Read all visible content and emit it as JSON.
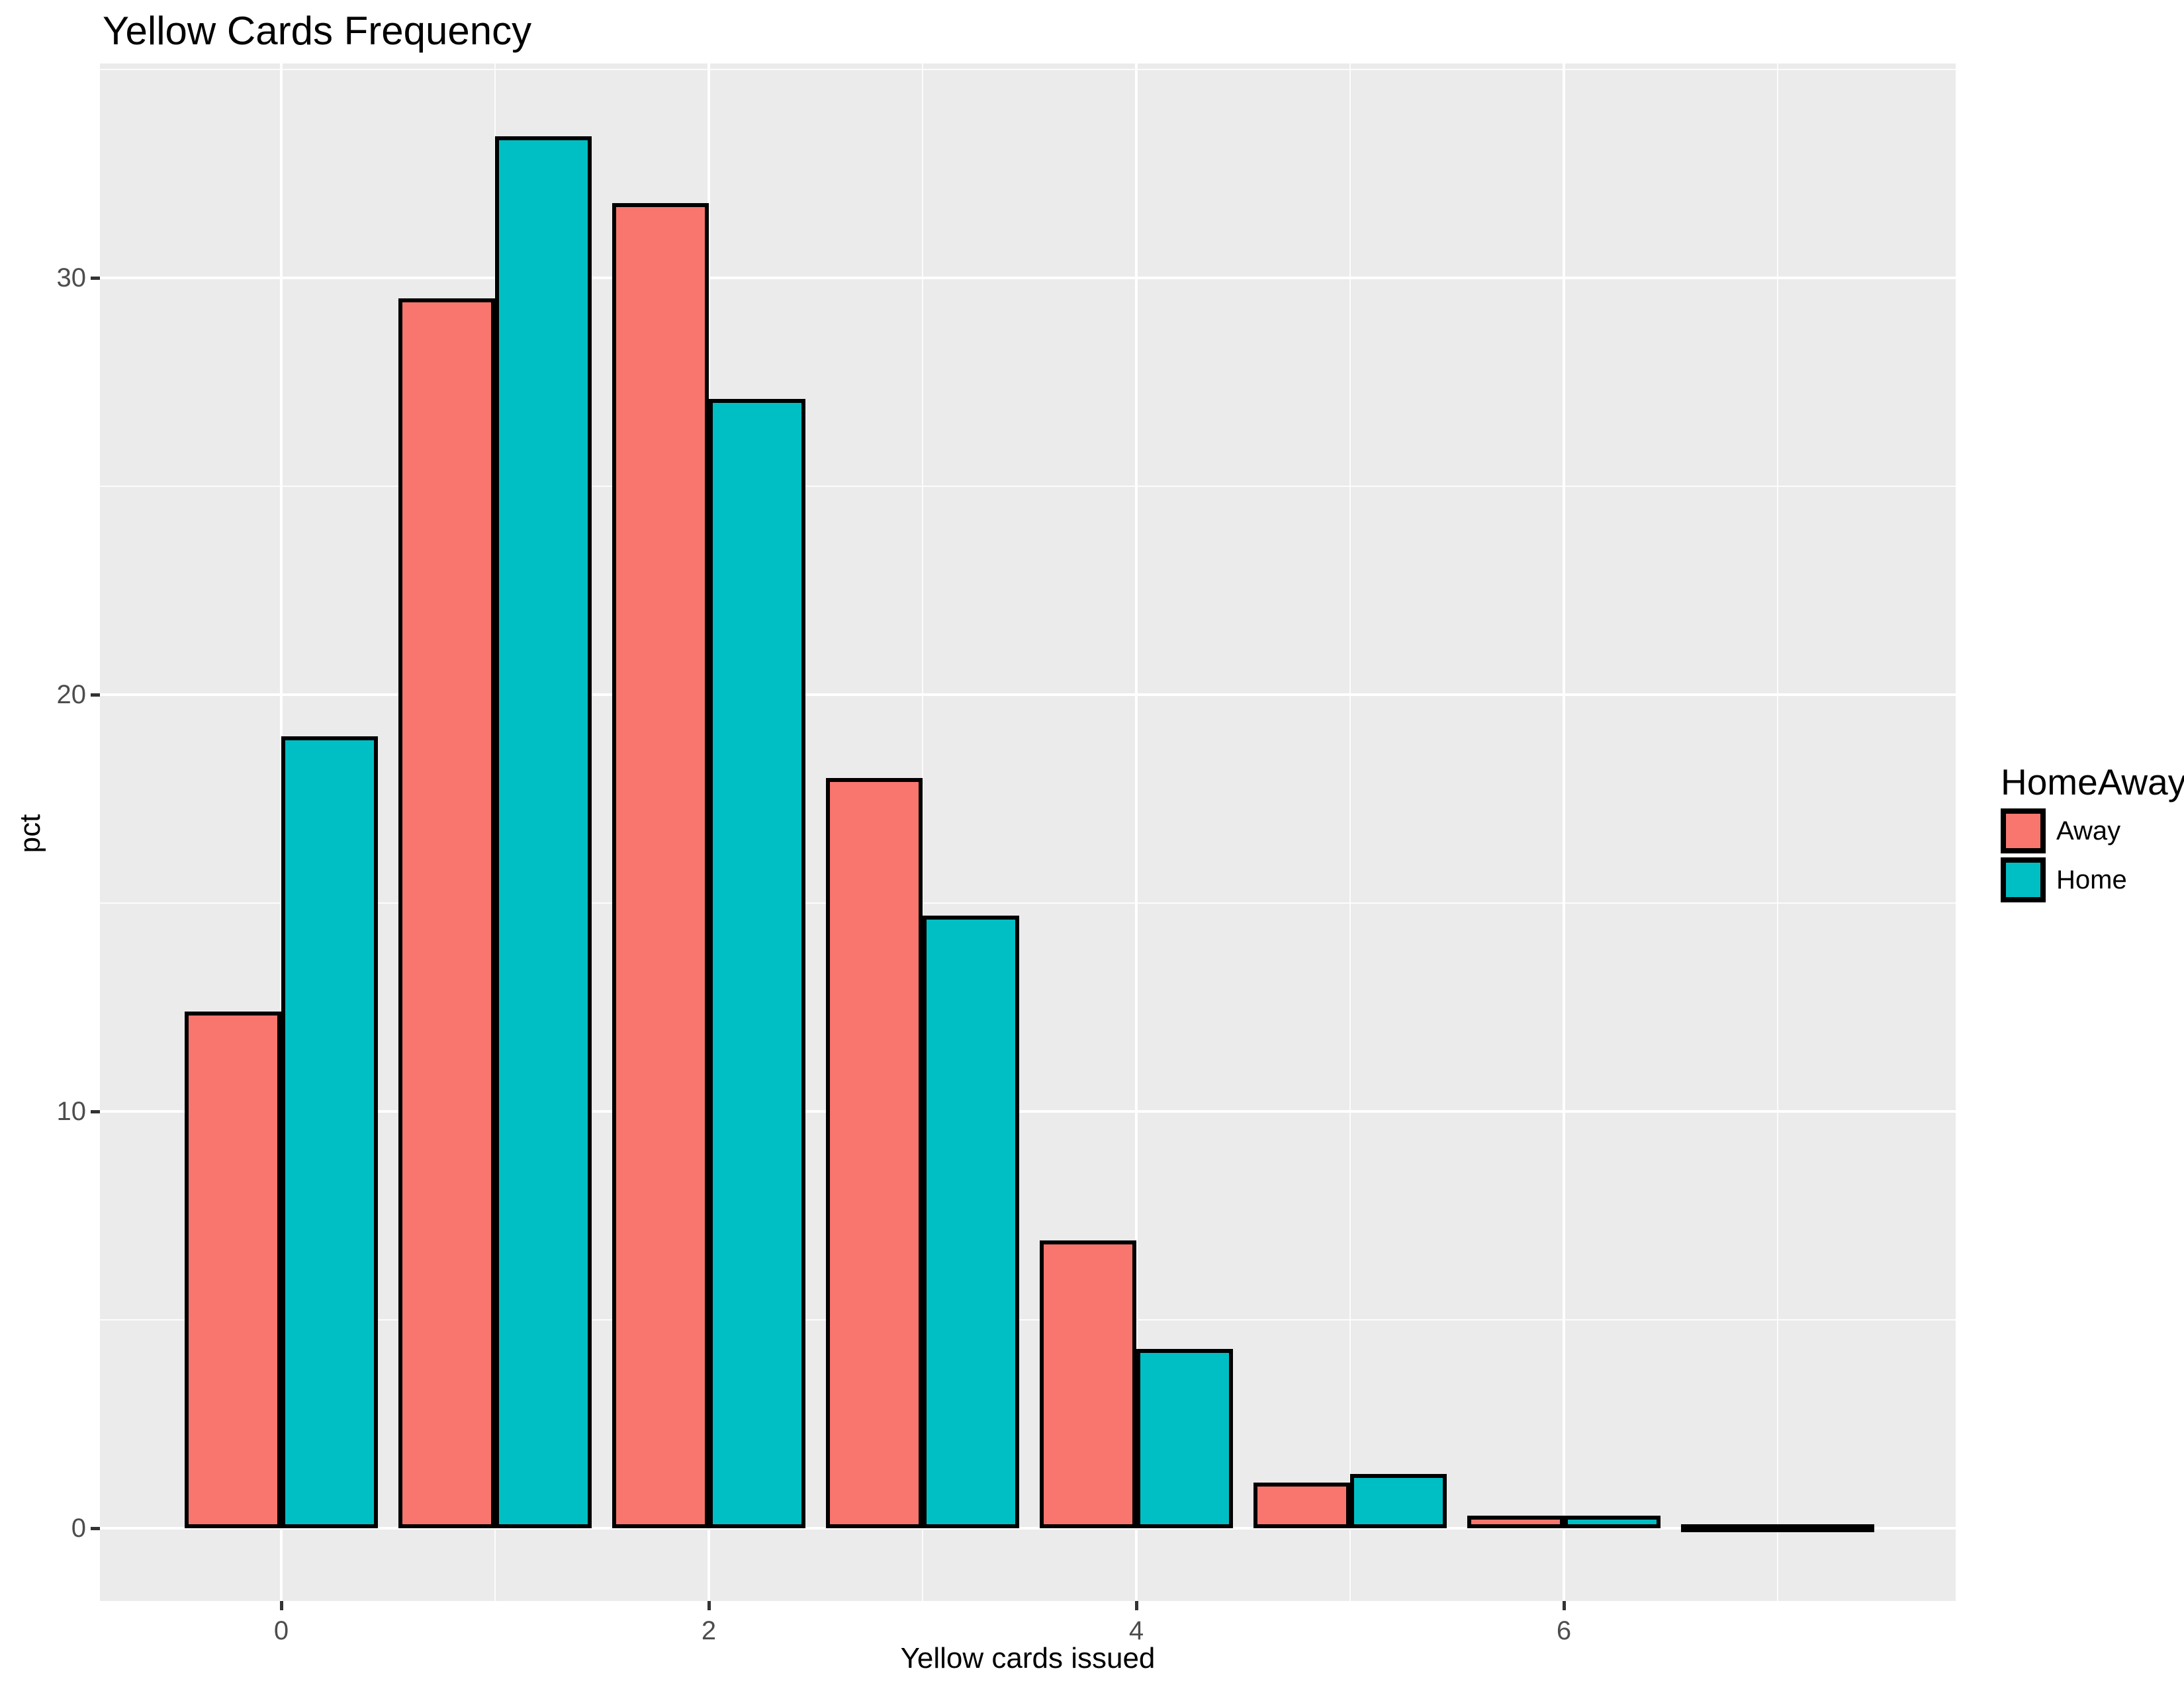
{
  "title": "Yellow Cards Frequency",
  "x_axis": {
    "title": "Yellow cards issued",
    "tick_labels": [
      "0",
      "2",
      "4",
      "6"
    ],
    "tick_values": [
      0,
      2,
      4,
      6
    ],
    "minor_break_values": [
      1,
      3,
      5,
      7
    ]
  },
  "y_axis": {
    "title": "pct",
    "tick_labels": [
      "0",
      "10",
      "20",
      "30"
    ],
    "tick_values": [
      0,
      10,
      20,
      30
    ],
    "minor_break_values": [
      5,
      15,
      25,
      35
    ]
  },
  "legend": {
    "title": "HomeAway",
    "items": [
      {
        "label": "Away",
        "color": "#F8766D"
      },
      {
        "label": "Home",
        "color": "#00BFC4"
      }
    ]
  },
  "colors": {
    "away": "#F8766D",
    "home": "#00BFC4",
    "panel_background": "#EBEBEB",
    "gridline": "#FFFFFF",
    "tick_text": "#4D4D4D",
    "tick_mark": "#333333",
    "bar_outline": "#000000"
  },
  "chart_data": {
    "type": "bar",
    "title": "Yellow Cards Frequency",
    "xlabel": "Yellow cards issued",
    "ylabel": "pct",
    "categories": [
      0,
      1,
      2,
      3,
      4,
      5,
      6,
      7
    ],
    "series": [
      {
        "name": "Away",
        "color": "#F8766D",
        "values": [
          12.4,
          29.5,
          31.8,
          18.0,
          6.9,
          1.1,
          0.3,
          0.05
        ]
      },
      {
        "name": "Home",
        "color": "#00BFC4",
        "values": [
          19.0,
          33.4,
          27.1,
          14.7,
          4.3,
          1.3,
          0.3,
          0.05
        ]
      }
    ],
    "x_breaks": [
      0,
      2,
      4,
      6
    ],
    "x_minor_breaks": [
      1,
      3,
      5,
      7
    ],
    "y_breaks": [
      0,
      10,
      20,
      30
    ],
    "y_minor_breaks": [
      5,
      15,
      25,
      35
    ],
    "xlim": [
      -0.845,
      7.845
    ],
    "ylim": [
      -1.67,
      35.07
    ],
    "grid": true,
    "legend_position": "right",
    "bar_grouping": "dodge"
  }
}
